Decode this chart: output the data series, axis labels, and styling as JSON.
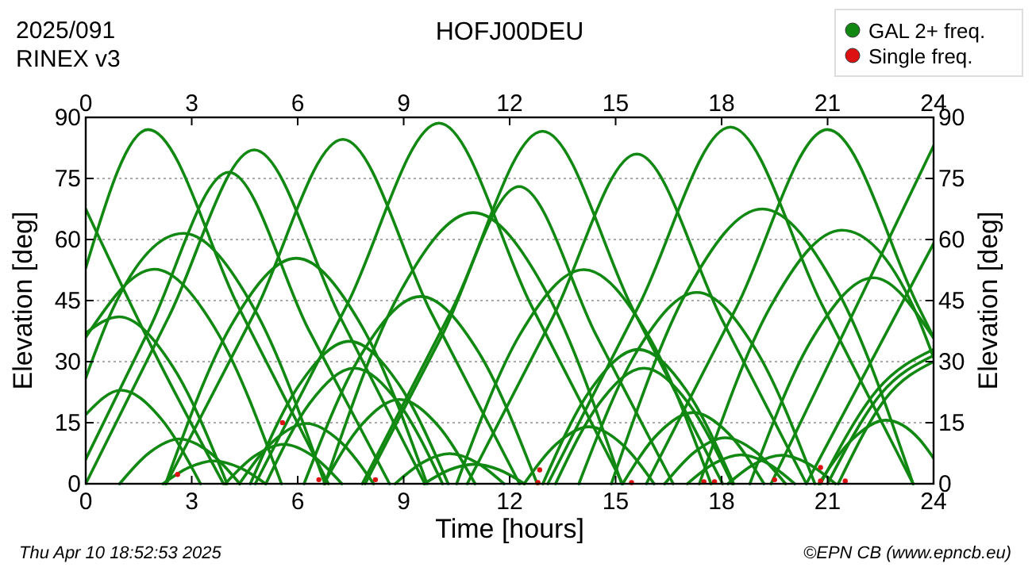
{
  "chart_data": {
    "type": "line",
    "title": "HOFJ00DEU",
    "xlabel": "Time [hours]",
    "ylabel": "Elevation [deg]",
    "y2label": "Elevation [deg]",
    "annotations": [
      "2025/091",
      "RINEX v3",
      "Thu Apr 10 18:52:53 2025",
      "©EPN CB (www.epncb.eu)"
    ],
    "xlim": [
      0,
      24
    ],
    "xticks": [
      0,
      3,
      6,
      9,
      12,
      15,
      18,
      21,
      24
    ],
    "x2lim": [
      0,
      24
    ],
    "x2ticks": [
      0,
      3,
      6,
      9,
      12,
      15,
      18,
      21,
      24
    ],
    "ylim": [
      0,
      90
    ],
    "yticks": [
      0,
      15,
      30,
      45,
      60,
      75,
      90
    ],
    "y2lim": [
      0,
      90
    ],
    "y2ticks": [
      0,
      15,
      30,
      45,
      60,
      75,
      90
    ],
    "grid": "y",
    "legend": "top right",
    "line_style": "solid",
    "series": [
      {
        "name": "GAL 2+ freq.",
        "color": "#118811",
        "x": [
          0,
          1.77,
          4.32,
          6.87
        ],
        "values": [
          53,
          87,
          43.5,
          0
        ]
      },
      {
        "color": "#118811",
        "x": [
          0,
          1.9,
          3.9
        ],
        "values": [
          67.5,
          33,
          0
        ]
      },
      {
        "color": "#118811",
        "x": [
          0,
          1.8,
          4.05,
          6.3,
          8.6
        ],
        "values": [
          6,
          38,
          76.5,
          38,
          0
        ]
      },
      {
        "color": "#118811",
        "x": [
          0,
          2.35,
          4.77,
          7.2,
          9.6
        ],
        "values": [
          0,
          41,
          82,
          41,
          0
        ]
      },
      {
        "color": "#118811",
        "x": [
          2.28,
          4.78,
          7.28,
          9.78,
          12.28
        ],
        "values": [
          0,
          42,
          84.6,
          42,
          0
        ]
      },
      {
        "color": "#118811",
        "x": [
          4.8,
          7.4,
          10,
          12.6,
          15.2
        ],
        "values": [
          0,
          44,
          88.6,
          44,
          0
        ]
      },
      {
        "color": "#118811",
        "x": [
          7.83,
          10.38,
          12.93,
          15.48,
          18.03
        ],
        "values": [
          0,
          43,
          86.6,
          43,
          0
        ]
      },
      {
        "color": "#118811",
        "x": [
          10.8,
          13.2,
          15.6,
          18,
          20.4
        ],
        "values": [
          0,
          40.5,
          81,
          40.5,
          0
        ]
      },
      {
        "color": "#118811",
        "x": [
          13.08,
          15.67,
          18.25,
          20.84,
          23.42
        ],
        "values": [
          0,
          44,
          87.6,
          44,
          0
        ]
      },
      {
        "color": "#118811",
        "x": [
          15.87,
          18.43,
          21,
          23.57,
          24
        ],
        "values": [
          0,
          43.5,
          87,
          43.5,
          36
        ]
      },
      {
        "color": "#118811",
        "x": [
          19.4,
          21.7,
          24
        ],
        "values": [
          0,
          41.5,
          83
        ]
      },
      {
        "color": "#118811",
        "x": [
          20.4,
          22.2,
          24
        ],
        "values": [
          0,
          29.5,
          59
        ]
      },
      {
        "color": "#118811",
        "x": [
          0,
          0.77,
          2.77,
          4.77,
          6.77
        ],
        "values": [
          26,
          43,
          61.5,
          43,
          0
        ]
      },
      {
        "color": "#118811",
        "x": [
          0,
          1.94,
          3.74,
          5.54
        ],
        "values": [
          36,
          52.7,
          37,
          0
        ]
      },
      {
        "color": "#118811",
        "x": [
          0,
          0.94,
          2.47,
          4
        ],
        "values": [
          37,
          41,
          28.7,
          0
        ]
      },
      {
        "color": "#118811",
        "x": [
          0,
          1,
          2.13,
          3.25
        ],
        "values": [
          17,
          23,
          16,
          0
        ]
      },
      {
        "color": "#118811",
        "x": [
          2.26,
          4.11,
          5.96,
          7.81,
          9.66
        ],
        "values": [
          0,
          38.8,
          55.4,
          38.8,
          0
        ]
      },
      {
        "color": "#118811",
        "x": [
          4.66,
          6.06,
          7.46,
          8.86,
          10.26
        ],
        "values": [
          0,
          24.5,
          35,
          24.5,
          0
        ]
      },
      {
        "color": "#118811",
        "x": [
          5.1,
          6.35,
          7.6,
          8.85,
          10.1
        ],
        "values": [
          0,
          19.9,
          28.4,
          19.9,
          0
        ]
      },
      {
        "color": "#118811",
        "x": [
          0.96,
          1.81,
          2.66,
          3.51,
          4.36
        ],
        "values": [
          0,
          7.7,
          11,
          7.7,
          0
        ]
      },
      {
        "color": "#118811",
        "x": [
          2.19,
          2.9,
          3.64,
          4.37,
          5.09
        ],
        "values": [
          0,
          3.9,
          5.6,
          3.9,
          0
        ]
      },
      {
        "color": "#118811",
        "x": [
          3.95,
          4.78,
          5.6,
          6.43,
          7.25
        ],
        "values": [
          0,
          6.8,
          9.7,
          6.8,
          0
        ]
      },
      {
        "color": "#118811",
        "x": [
          4.35,
          5.3,
          6.25,
          7.2,
          8.15
        ],
        "values": [
          0,
          10.4,
          14.8,
          10.4,
          0
        ]
      },
      {
        "color": "#118811",
        "x": [
          6.77,
          8.87,
          10.97,
          13.07,
          15.17
        ],
        "values": [
          0,
          46.6,
          66.6,
          46.6,
          0
        ]
      },
      {
        "color": "#118811",
        "x": [
          7.91,
          10.09,
          12.27,
          14.45,
          16.63
        ],
        "values": [
          0,
          36.5,
          73,
          36.5,
          0
        ]
      },
      {
        "color": "#118811",
        "x": [
          10.5,
          12.3,
          14.1,
          15.9,
          17.7
        ],
        "values": [
          0,
          36.8,
          52.6,
          36.8,
          0
        ]
      },
      {
        "color": "#118811",
        "x": [
          6.18,
          7.83,
          9.48,
          11.13,
          12.78
        ],
        "values": [
          0,
          32.2,
          46,
          32.2,
          0
        ]
      },
      {
        "color": "#118811",
        "x": [
          6.74,
          7.81,
          8.88,
          9.95,
          11.02
        ],
        "values": [
          0,
          14.5,
          20.7,
          14.5,
          0
        ]
      },
      {
        "color": "#118811",
        "x": [
          12.94,
          14.29,
          15.64,
          16.99,
          18.34
        ],
        "values": [
          0,
          23.1,
          33,
          23.1,
          0
        ]
      },
      {
        "color": "#118811",
        "x": [
          13.3,
          14.55,
          15.8,
          17.05,
          18.3
        ],
        "values": [
          0,
          19.9,
          28.4,
          19.9,
          0
        ]
      },
      {
        "color": "#118811",
        "x": [
          12.41,
          13.33,
          14.25,
          15.17,
          16.09
        ],
        "values": [
          0,
          9.8,
          14,
          9.8,
          0
        ]
      },
      {
        "color": "#118811",
        "x": [
          8.76,
          9.53,
          10.3,
          11.07,
          11.84
        ],
        "values": [
          0,
          5.2,
          7.4,
          5.2,
          0
        ]
      },
      {
        "color": "#118811",
        "x": [
          9.58,
          10.29,
          11,
          11.71,
          12.42
        ],
        "values": [
          0,
          3.4,
          4.8,
          3.4,
          0
        ]
      },
      {
        "color": "#118811",
        "x": [
          13.96,
          15.63,
          17.3,
          18.97,
          20.64
        ],
        "values": [
          0,
          32.9,
          47,
          32.9,
          0
        ]
      },
      {
        "color": "#118811",
        "x": [
          15.2,
          16.2,
          17.2,
          18.2,
          19.2
        ],
        "values": [
          0,
          12.3,
          17.5,
          12.3,
          0
        ]
      },
      {
        "color": "#118811",
        "x": [
          16.39,
          17.25,
          18.1,
          18.96,
          19.81
        ],
        "values": [
          0,
          7.9,
          11.3,
          7.9,
          0
        ]
      },
      {
        "color": "#118811",
        "x": [
          17.03,
          17.79,
          18.55,
          19.31,
          20.07
        ],
        "values": [
          0,
          5,
          7.1,
          5,
          0
        ]
      },
      {
        "color": "#118811",
        "x": [
          18.18,
          18.94,
          19.7,
          20.46,
          21.22
        ],
        "values": [
          0,
          4.9,
          7,
          4.9,
          0
        ]
      },
      {
        "color": "#118811",
        "x": [
          14.88,
          17.02,
          19.15,
          21.29,
          23.42
        ],
        "values": [
          0,
          47.3,
          67.5,
          47.3,
          0
        ]
      },
      {
        "color": "#118811",
        "x": [
          17.37,
          19.39,
          21.4,
          23.42,
          24
        ],
        "values": [
          0,
          43.6,
          62.3,
          43.6,
          31
        ]
      },
      {
        "color": "#118811",
        "x": [
          18.8,
          20.55,
          22.3,
          24
        ],
        "values": [
          0,
          35.4,
          50.6,
          35.8
        ]
      },
      {
        "color": "#118811",
        "x": [
          20.75,
          21.7,
          22.65,
          23.6,
          24
        ],
        "values": [
          0,
          10.9,
          15.6,
          10.9,
          6.3
        ]
      },
      {
        "color": "#118811",
        "x": [
          20.8,
          22.4,
          24
        ],
        "values": [
          0,
          23,
          33
        ]
      },
      {
        "color": "#118811",
        "x": [
          21,
          22.5,
          24
        ],
        "values": [
          0,
          22,
          31.5
        ]
      },
      {
        "color": "#118811",
        "x": [
          21.3,
          22.65,
          24
        ],
        "values": [
          0,
          21,
          30
        ]
      },
      {
        "name": "Single freq.",
        "type": "scatter",
        "marker": "circle",
        "color": "#dd1111",
        "x": [
          2.6,
          5.57,
          6.6,
          8.2,
          12.85,
          12.8,
          15.45,
          17.5,
          17.8,
          19.5,
          20.8,
          20.8,
          21.5
        ],
        "values": [
          2.3,
          15,
          1,
          1,
          3.4,
          0.3,
          0.3,
          0.5,
          0.5,
          1,
          4,
          0.7,
          0.7
        ]
      }
    ]
  }
}
